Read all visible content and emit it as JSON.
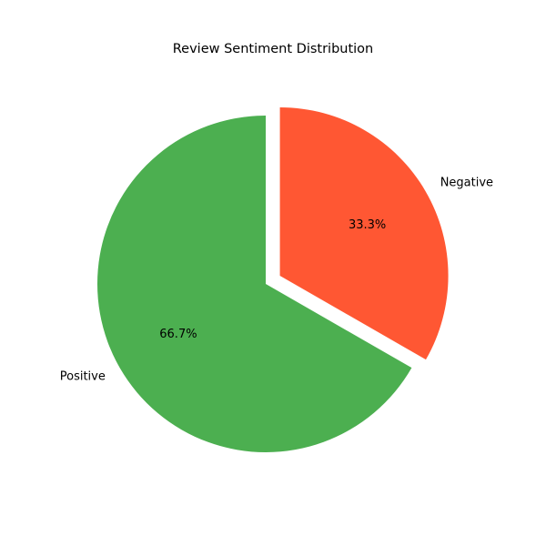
{
  "chart_data": {
    "type": "pie",
    "title": "Review Sentiment Distribution",
    "categories": [
      "Positive",
      "Negative"
    ],
    "values": [
      66.7,
      33.3
    ],
    "percent_labels": [
      "66.7%",
      "33.3%"
    ],
    "colors": [
      "#4caf50",
      "#ff5733"
    ],
    "exploded": [
      false,
      true
    ],
    "start_angle_deg": 90,
    "direction": "counterclockwise",
    "legend": "none"
  }
}
